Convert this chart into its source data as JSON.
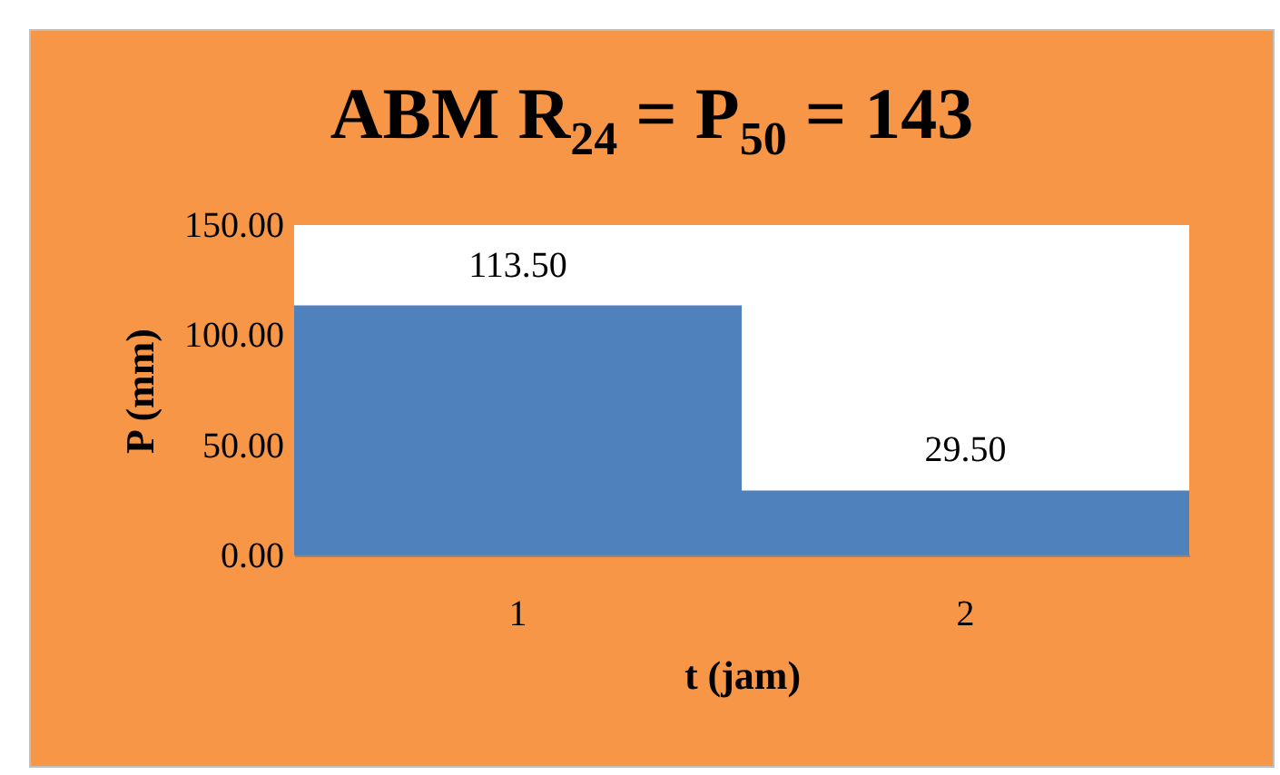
{
  "chart_data": {
    "type": "bar",
    "title": "ABM R$_{24}$ = P$_{50}$ = 143",
    "xlabel": "t (jam)",
    "ylabel": "P (mm)",
    "categories": [
      "1",
      "2"
    ],
    "values": [
      113.5,
      29.5
    ],
    "color": "#4f81bd",
    "value_labels": [
      "113.50",
      "29.50"
    ],
    "ylim": [
      0,
      150
    ],
    "yticks": [
      {
        "value": 0,
        "label": "0.00"
      },
      {
        "value": 50,
        "label": "50.00"
      },
      {
        "value": 100,
        "label": "100.00"
      },
      {
        "value": 150,
        "label": "150.00"
      }
    ]
  }
}
